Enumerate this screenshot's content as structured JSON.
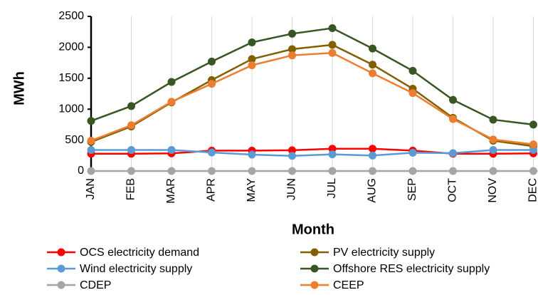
{
  "chart_data": {
    "type": "line",
    "x_label": "Month",
    "y_label": "MWh",
    "categories": [
      "JAN",
      "FEB",
      "MAR",
      "APR",
      "MAY",
      "JUN",
      "JUL",
      "AUG",
      "SEP",
      "OCT",
      "NOV",
      "DEC"
    ],
    "series": [
      {
        "name": "OCS electricity demand",
        "color": "#ff0000",
        "values": [
          280,
          280,
          285,
          330,
          330,
          335,
          360,
          360,
          330,
          280,
          280,
          285
        ]
      },
      {
        "name": "PV electricity supply",
        "color": "#806000",
        "values": [
          470,
          720,
          1110,
          1470,
          1810,
          1970,
          2040,
          1720,
          1330,
          860,
          490,
          400
        ]
      },
      {
        "name": "Wind electricity supply",
        "color": "#5b9bd5",
        "values": [
          340,
          340,
          340,
          300,
          265,
          245,
          270,
          250,
          295,
          290,
          340,
          340
        ]
      },
      {
        "name": "Offshore RES electricity supply",
        "color": "#375623",
        "values": [
          810,
          1050,
          1440,
          1770,
          2080,
          2220,
          2310,
          1980,
          1620,
          1150,
          830,
          750
        ]
      },
      {
        "name": "CDEP",
        "color": "#a5a5a5",
        "values": [
          0,
          0,
          0,
          0,
          0,
          0,
          0,
          0,
          0,
          0,
          0,
          0
        ]
      },
      {
        "name": "CEEP",
        "color": "#ed7d31",
        "values": [
          490,
          740,
          1120,
          1410,
          1710,
          1870,
          1910,
          1580,
          1260,
          840,
          510,
          430
        ]
      }
    ],
    "ylim": [
      0,
      2500
    ],
    "yticks": [
      0,
      500,
      1000,
      1500,
      2000,
      2500
    ],
    "xgrid": true,
    "legend": "bottom"
  }
}
